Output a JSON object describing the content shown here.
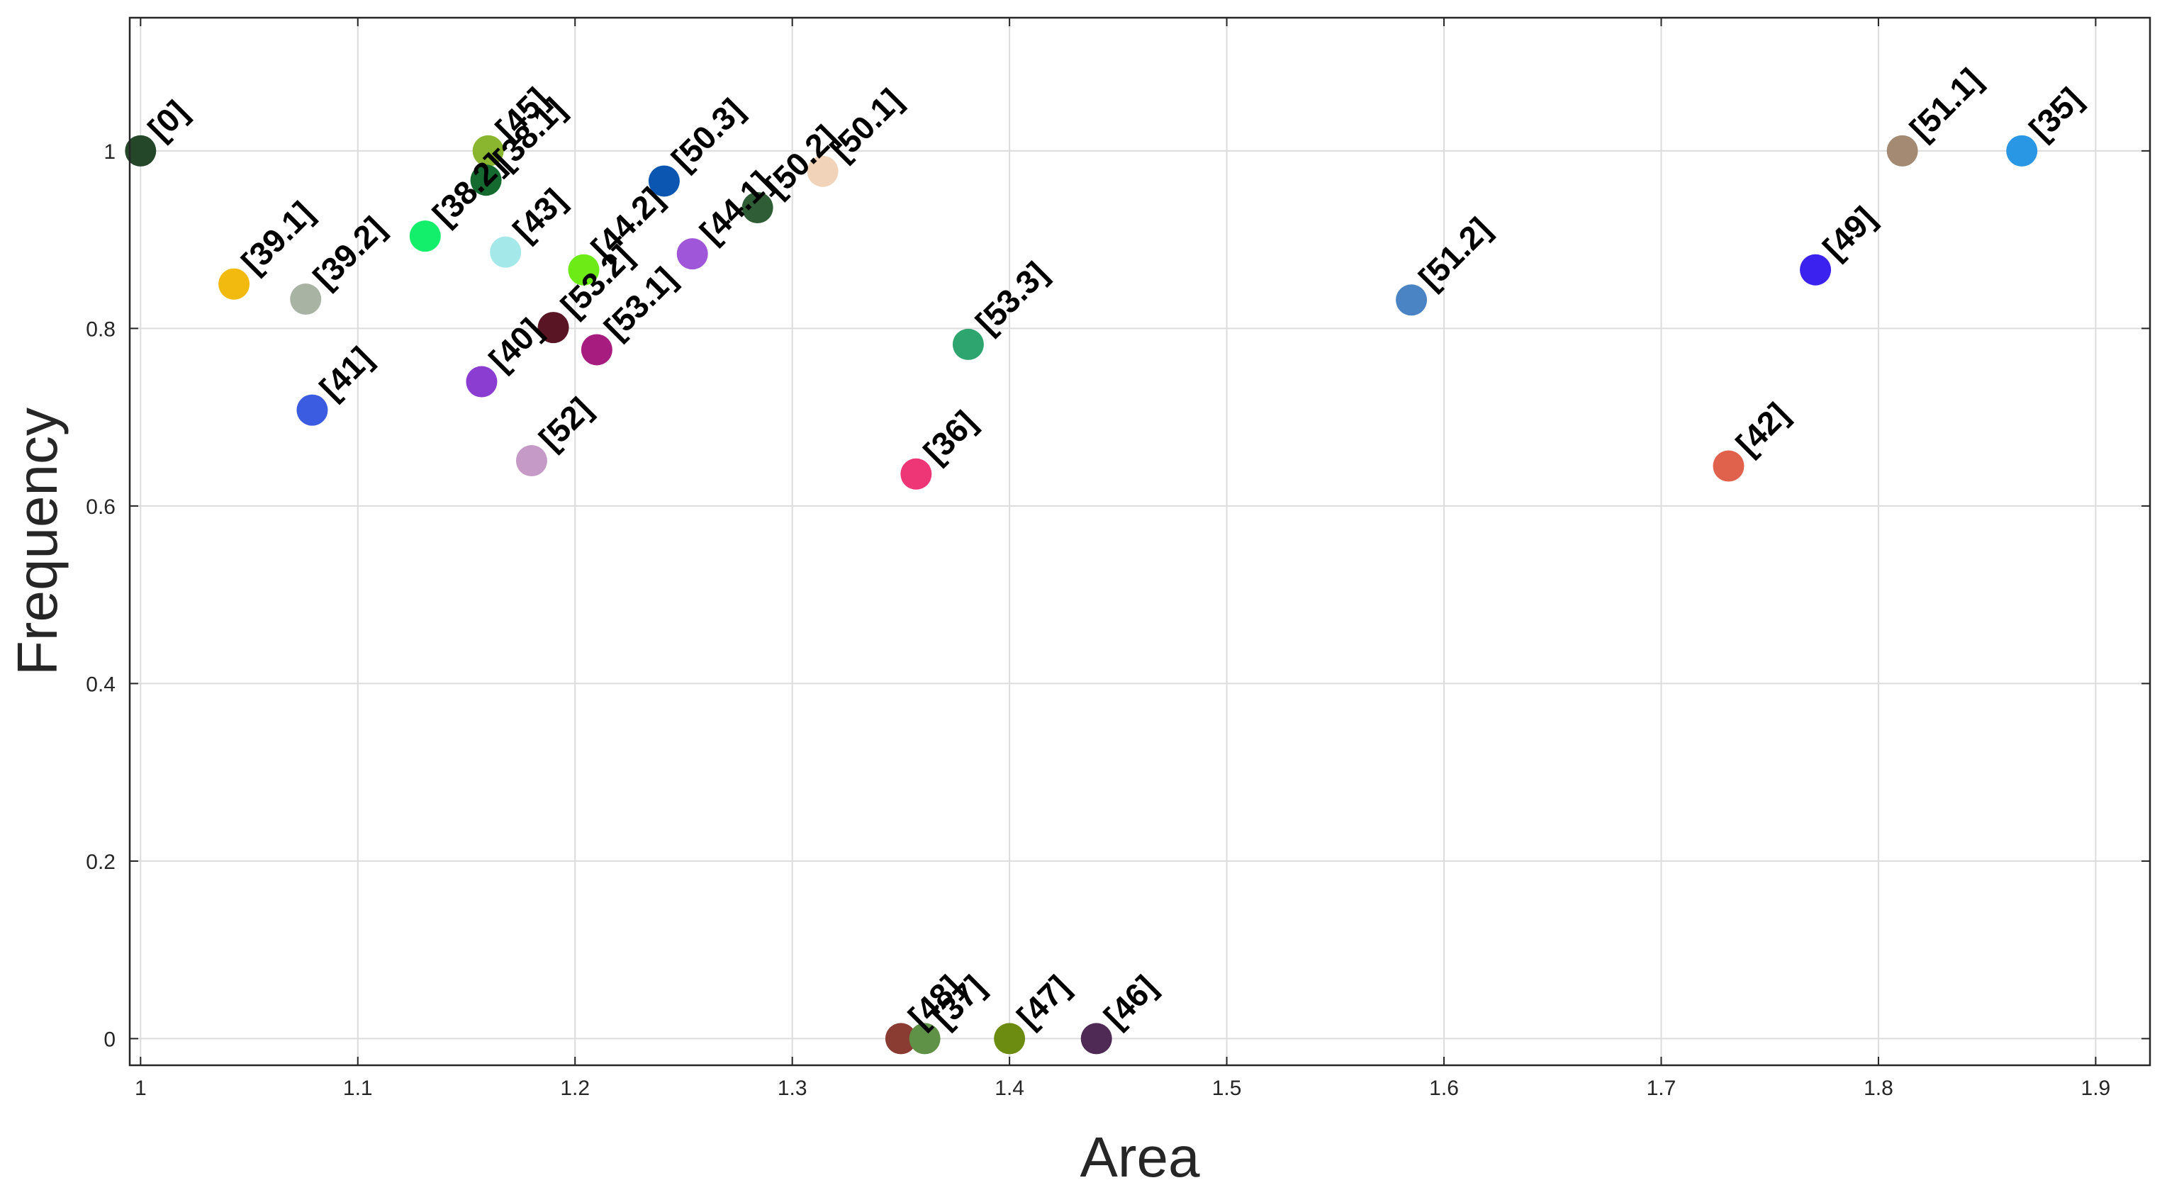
{
  "chart_data": {
    "type": "scatter",
    "title": "",
    "xlabel": "Area",
    "ylabel": "Frequency",
    "xlim": [
      0.995,
      1.925
    ],
    "ylim": [
      -0.03,
      1.15
    ],
    "grid": true,
    "x_ticks": [
      1,
      1.1,
      1.2,
      1.3,
      1.4,
      1.5,
      1.6,
      1.7,
      1.8,
      1.9
    ],
    "x_tick_labels": [
      "1",
      "1.1",
      "1.2",
      "1.3",
      "1.4",
      "1.5",
      "1.6",
      "1.7",
      "1.8",
      "1.9"
    ],
    "y_ticks": [
      0,
      0.2,
      0.4,
      0.6,
      0.8,
      1
    ],
    "y_tick_labels": [
      "0",
      "0.2",
      "0.4",
      "0.6",
      "0.8",
      "1"
    ],
    "points": [
      {
        "label": "[0]",
        "x": 1.0,
        "y": 1.0,
        "color": "#24472a"
      },
      {
        "label": "[39.1]",
        "x": 1.043,
        "y": 0.85,
        "color": "#f2b90f"
      },
      {
        "label": "[39.2]",
        "x": 1.076,
        "y": 0.833,
        "color": "#a9b3a3"
      },
      {
        "label": "[41]",
        "x": 1.079,
        "y": 0.708,
        "color": "#3b5be0"
      },
      {
        "label": "[38.2]",
        "x": 1.131,
        "y": 0.904,
        "color": "#13ee6b"
      },
      {
        "label": "[45]",
        "x": 1.16,
        "y": 1.0,
        "color": "#8ab52e"
      },
      {
        "label": "[38.1]",
        "x": 1.159,
        "y": 0.967,
        "color": "#146a2f"
      },
      {
        "label": "[40]",
        "x": 1.157,
        "y": 0.74,
        "color": "#8b3dd1"
      },
      {
        "label": "[43]",
        "x": 1.168,
        "y": 0.886,
        "color": "#a4e8ea"
      },
      {
        "label": "[52]",
        "x": 1.18,
        "y": 0.651,
        "color": "#c69ac7"
      },
      {
        "label": "[53.2]",
        "x": 1.19,
        "y": 0.801,
        "color": "#5a1524"
      },
      {
        "label": "[44.2]",
        "x": 1.204,
        "y": 0.866,
        "color": "#6ceb17"
      },
      {
        "label": "[53.1]",
        "x": 1.21,
        "y": 0.776,
        "color": "#a61d7f"
      },
      {
        "label": "[50.3]",
        "x": 1.241,
        "y": 0.966,
        "color": "#0a56b0"
      },
      {
        "label": "[44.1]",
        "x": 1.254,
        "y": 0.884,
        "color": "#a056d8"
      },
      {
        "label": "[50.2]",
        "x": 1.284,
        "y": 0.936,
        "color": "#2f5e36"
      },
      {
        "label": "[50.1]",
        "x": 1.314,
        "y": 0.977,
        "color": "#f0d3b8"
      },
      {
        "label": "[36]",
        "x": 1.357,
        "y": 0.636,
        "color": "#ee3677"
      },
      {
        "label": "[53.3]",
        "x": 1.381,
        "y": 0.782,
        "color": "#2ea56e"
      },
      {
        "label": "[48]",
        "x": 1.35,
        "y": 0.0,
        "color": "#8a3c33"
      },
      {
        "label": "[37]",
        "x": 1.361,
        "y": 0.0,
        "color": "#5f9147"
      },
      {
        "label": "[47]",
        "x": 1.4,
        "y": 0.0,
        "color": "#6b8c10"
      },
      {
        "label": "[46]",
        "x": 1.44,
        "y": 0.0,
        "color": "#4e2a55"
      },
      {
        "label": "[51.2]",
        "x": 1.585,
        "y": 0.832,
        "color": "#4a84c4"
      },
      {
        "label": "[42]",
        "x": 1.731,
        "y": 0.645,
        "color": "#e0624d"
      },
      {
        "label": "[49]",
        "x": 1.771,
        "y": 0.866,
        "color": "#3b22ee"
      },
      {
        "label": "[51.1]",
        "x": 1.811,
        "y": 1.0,
        "color": "#a48a73"
      },
      {
        "label": "[35]",
        "x": 1.866,
        "y": 1.0,
        "color": "#2a97e4"
      }
    ]
  }
}
